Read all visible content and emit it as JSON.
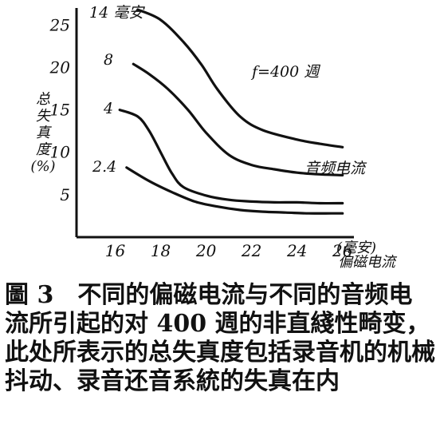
{
  "chart_data": {
    "type": "line",
    "ylabel": "总\n失\n真\n度\n(%)",
    "xlabel": "偏磁电流",
    "x_unit": "(毫安)",
    "annotation": "f=400 週",
    "curve_caption": "音频电流",
    "xlim": [
      14.3,
      26.5
    ],
    "ylim": [
      0,
      27
    ],
    "x_ticks": [
      16,
      18,
      20,
      22,
      24,
      26
    ],
    "y_ticks": [
      5,
      10,
      15,
      20,
      25
    ],
    "series": [
      {
        "name": "14 毫安",
        "x": [
          17.0,
          18.0,
          19.0,
          19.8,
          20.5,
          21.5,
          22.5,
          24.0,
          25.0,
          26.0
        ],
        "y": [
          26.8,
          25.6,
          23.0,
          20.3,
          17.4,
          14.2,
          12.6,
          11.5,
          11.0,
          10.6
        ]
      },
      {
        "name": "8",
        "x": [
          16.8,
          17.5,
          18.3,
          19.2,
          20.0,
          21.0,
          22.0,
          23.0,
          24.0,
          25.0,
          26.0
        ],
        "y": [
          20.4,
          19.2,
          17.5,
          15.0,
          12.3,
          9.7,
          8.5,
          8.0,
          7.6,
          7.4,
          7.3
        ]
      },
      {
        "name": "4",
        "x": [
          16.2,
          17.0,
          17.5,
          18.0,
          18.5,
          19.0,
          20.0,
          21.0,
          22.0,
          23.0,
          24.0,
          25.0,
          26.0
        ],
        "y": [
          15.0,
          14.2,
          12.5,
          10.0,
          7.5,
          5.9,
          4.9,
          4.4,
          4.2,
          4.1,
          4.1,
          4.0,
          4.0
        ]
      },
      {
        "name": "2.4",
        "x": [
          16.5,
          17.5,
          18.5,
          19.5,
          20.5,
          21.5,
          22.5,
          23.5,
          24.5,
          25.5,
          26.0
        ],
        "y": [
          8.2,
          6.6,
          5.3,
          4.2,
          3.6,
          3.2,
          3.0,
          2.9,
          2.8,
          2.8,
          2.8
        ]
      }
    ]
  },
  "caption": {
    "text": "圖 3　不同的偏磁电流与不同的音频电流所引起的对 400 週的非直綫性畸变，此处所表示的总失真度包括录音机的机械抖动、录音还音系統的失真在内"
  }
}
